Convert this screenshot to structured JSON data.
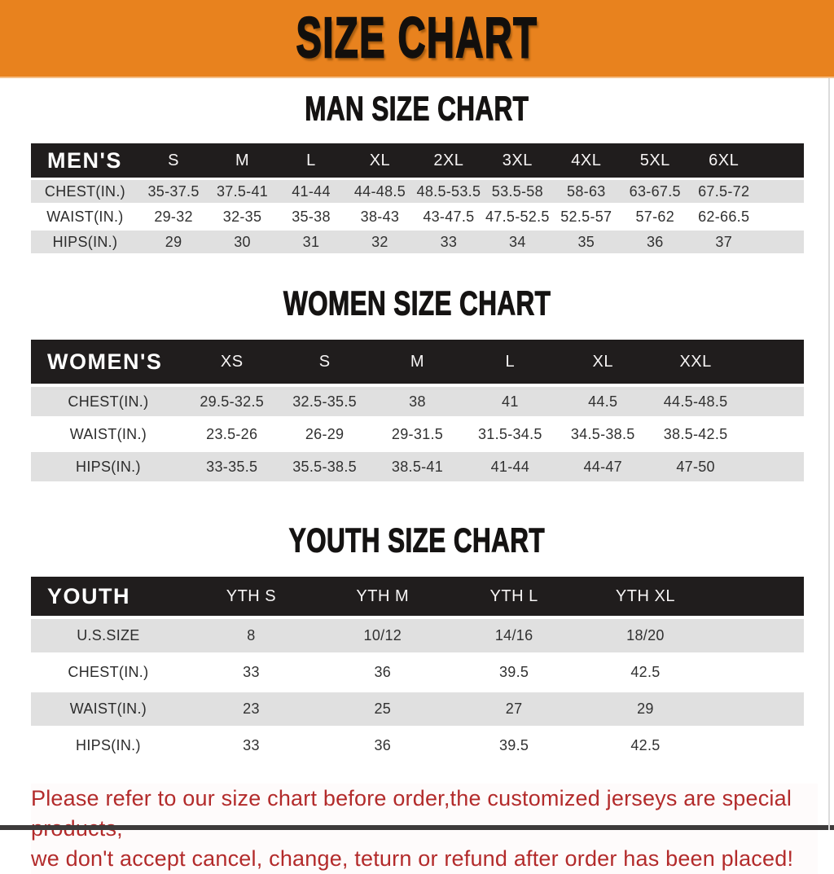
{
  "banner": {
    "title": "SIZE CHART",
    "bg_color": "#e8821e"
  },
  "sections": [
    {
      "heading": "MAN SIZE CHART",
      "group_label": "MEN'S",
      "columns": [
        "S",
        "M",
        "L",
        "XL",
        "2XL",
        "3XL",
        "4XL",
        "5XL",
        "6XL"
      ],
      "rows": [
        {
          "label": "CHEST(IN.)",
          "values": [
            "35-37.5",
            "37.5-41",
            "41-44",
            "44-48.5",
            "48.5-53.5",
            "53.5-58",
            "58-63",
            "63-67.5",
            "67.5-72"
          ]
        },
        {
          "label": "WAIST(IN.)",
          "values": [
            "29-32",
            "32-35",
            "35-38",
            "38-43",
            "43-47.5",
            "47.5-52.5",
            "52.5-57",
            "57-62",
            "62-66.5"
          ]
        },
        {
          "label": "HIPS(IN.)",
          "values": [
            "29",
            "30",
            "31",
            "32",
            "33",
            "34",
            "35",
            "36",
            "37"
          ]
        }
      ]
    },
    {
      "heading": "WOMEN SIZE CHART",
      "group_label": "WOMEN'S",
      "columns": [
        "XS",
        "S",
        "M",
        "L",
        "XL",
        "XXL"
      ],
      "rows": [
        {
          "label": "CHEST(IN.)",
          "values": [
            "29.5-32.5",
            "32.5-35.5",
            "38",
            "41",
            "44.5",
            "44.5-48.5"
          ]
        },
        {
          "label": "WAIST(IN.)",
          "values": [
            "23.5-26",
            "26-29",
            "29-31.5",
            "31.5-34.5",
            "34.5-38.5",
            "38.5-42.5"
          ]
        },
        {
          "label": "HIPS(IN.)",
          "values": [
            "33-35.5",
            "35.5-38.5",
            "38.5-41",
            "41-44",
            "44-47",
            "47-50"
          ]
        }
      ]
    },
    {
      "heading": "YOUTH SIZE CHART",
      "group_label": "YOUTH",
      "columns": [
        "YTH S",
        "YTH M",
        "YTH L",
        "YTH XL"
      ],
      "rows": [
        {
          "label": "U.S.SIZE",
          "values": [
            "8",
            "10/12",
            "14/16",
            "18/20"
          ]
        },
        {
          "label": "CHEST(IN.)",
          "values": [
            "33",
            "36",
            "39.5",
            "42.5"
          ]
        },
        {
          "label": "WAIST(IN.)",
          "values": [
            "23",
            "25",
            "27",
            "29"
          ]
        },
        {
          "label": "HIPS(IN.)",
          "values": [
            "33",
            "36",
            "39.5",
            "42.5"
          ]
        }
      ]
    }
  ],
  "notice": {
    "line1": "Please refer to our size chart before order,the customized jerseys are special products,",
    "line2": "we don't accept cancel, change, teturn or refund after order has been placed!",
    "color": "#b32b2b"
  }
}
